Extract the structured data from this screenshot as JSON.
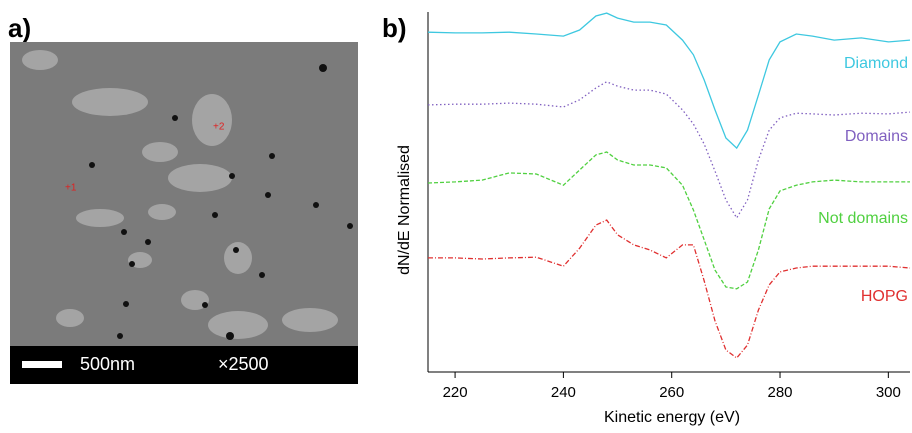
{
  "panel_a": {
    "label": "a)",
    "scale_bar": "500nm",
    "magnification": "×2500",
    "markers": [
      "+1",
      "+2"
    ]
  },
  "chart_data": {
    "type": "line",
    "panel_label": "b)",
    "x_label": "Kinetic energy (eV)",
    "y_label": "dN/dE Normalised",
    "xlim": [
      215,
      304
    ],
    "xticks": [
      220,
      240,
      260,
      280,
      300
    ],
    "ylim": [
      0,
      100
    ],
    "x": [
      215,
      220,
      225,
      230,
      235,
      240,
      243,
      246,
      248,
      250,
      253,
      256,
      259,
      262,
      264,
      266,
      268,
      270,
      272,
      274,
      276,
      278,
      280,
      283,
      286,
      290,
      295,
      300,
      304
    ],
    "series": [
      {
        "name": "Diamond",
        "color": "#3ec8e0",
        "line_style": "solid",
        "values": [
          94.4,
          94.2,
          94.2,
          94.4,
          93.9,
          93.3,
          95.0,
          98.9,
          99.7,
          98.3,
          97.2,
          97.2,
          96.4,
          92.2,
          88.1,
          81.1,
          72.8,
          65.0,
          62.2,
          67.2,
          76.9,
          86.7,
          91.7,
          93.9,
          93.3,
          92.2,
          92.8,
          91.7,
          92.2
        ]
      },
      {
        "name": "Domains",
        "color": "#8060c0",
        "line_style": "dotted",
        "values": [
          74.2,
          74.4,
          74.4,
          74.7,
          74.4,
          73.6,
          75.6,
          78.9,
          80.6,
          79.4,
          78.3,
          78.3,
          77.2,
          72.8,
          68.9,
          63.3,
          55.8,
          47.8,
          42.8,
          47.8,
          58.9,
          67.2,
          70.6,
          71.9,
          71.7,
          71.4,
          71.9,
          71.7,
          72.2
        ]
      },
      {
        "name": "Not domains",
        "color": "#50d040",
        "line_style": "dashed",
        "values": [
          52.5,
          52.8,
          53.3,
          55.3,
          55.0,
          51.9,
          56.1,
          60.3,
          61.1,
          58.9,
          57.5,
          57.5,
          56.7,
          51.9,
          45.0,
          36.7,
          28.3,
          23.6,
          23.1,
          25.0,
          33.9,
          45.3,
          50.3,
          51.9,
          52.8,
          53.3,
          52.8,
          52.8,
          52.8
        ]
      },
      {
        "name": "HOPG",
        "color": "#e03030",
        "line_style": "dashdot",
        "values": [
          31.7,
          31.7,
          31.4,
          31.7,
          31.9,
          29.4,
          34.4,
          40.8,
          42.2,
          38.1,
          35.3,
          33.9,
          31.7,
          35.3,
          35.3,
          25.3,
          14.2,
          6.1,
          3.9,
          7.5,
          17.2,
          24.2,
          27.8,
          28.9,
          29.4,
          29.4,
          29.4,
          29.4,
          28.9
        ]
      }
    ]
  }
}
